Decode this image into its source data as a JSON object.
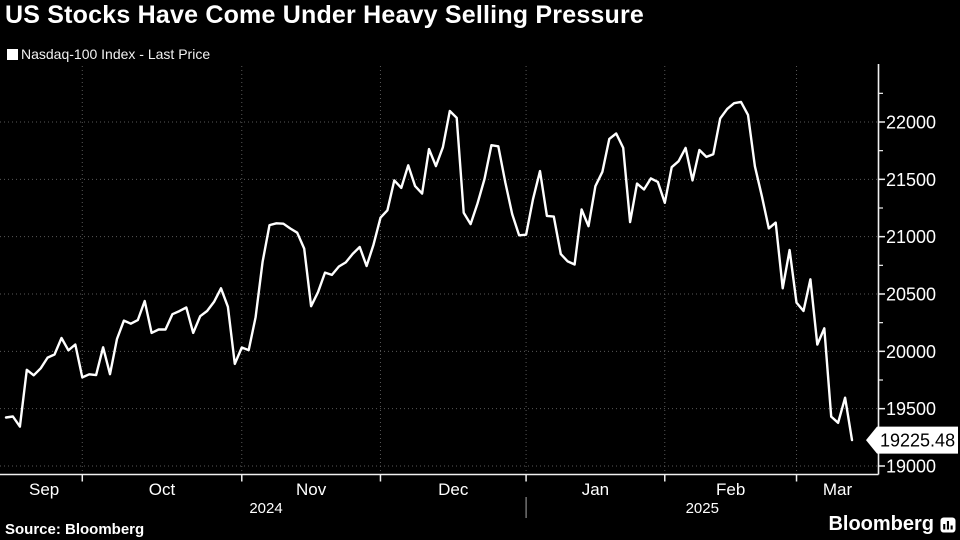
{
  "header": {
    "title": "US Stocks Have Come Under Heavy Selling Pressure"
  },
  "legend": {
    "swatch_color": "#ffffff",
    "label": "Nasdaq-100 Index - Last Price"
  },
  "footer": {
    "source": "Source: Bloomberg",
    "logo_text": "Bloomberg",
    "logo_icon": "bar-chart-icon"
  },
  "colors": {
    "background": "#000000",
    "text": "#ffffff",
    "grid": "#585858",
    "axis": "#f0f0f0",
    "series_line": "#ffffff",
    "tag_background": "#ffffff",
    "tag_text": "#000000"
  },
  "chart_data": {
    "type": "line",
    "title": "US Stocks Have Come Under Heavy Selling Pressure",
    "legend_position": "top-left",
    "grid": "dotted, horizontal at major y ticks, vertical at month starts",
    "background": "#000000",
    "series": [
      {
        "name": "Nasdaq-100 Index - Last Price",
        "color": "#ffffff",
        "frequency": "daily close",
        "values": [
          19423,
          19432,
          19344,
          19839,
          19791,
          19852,
          19945,
          19972,
          20116,
          20009,
          20060,
          19773,
          19800,
          19793,
          20035,
          19801,
          20108,
          20268,
          20241,
          20272,
          20439,
          20161,
          20190,
          20190,
          20324,
          20351,
          20382,
          20161,
          20306,
          20352,
          20431,
          20550,
          20388,
          19890,
          20033,
          20011,
          20298,
          20781,
          21101,
          21117,
          21113,
          21071,
          21035,
          20896,
          20394,
          20516,
          20687,
          20667,
          20740,
          20776,
          20850,
          20910,
          20744,
          20930,
          21165,
          21230,
          21491,
          21425,
          21622,
          21441,
          21376,
          21764,
          21615,
          21780,
          22096,
          22037,
          21209,
          21110,
          21289,
          21503,
          21798,
          21788,
          21473,
          21197,
          21012,
          21017,
          21327,
          21572,
          21181,
          21175,
          20848,
          20784,
          20757,
          21237,
          21091,
          21441,
          21566,
          21853,
          21900,
          21774,
          21127,
          21463,
          21411,
          21508,
          21478,
          21295,
          21606,
          21658,
          21774,
          21491,
          21756,
          21696,
          21719,
          22031,
          22114,
          22164,
          22175,
          22062,
          21614,
          21352,
          21072,
          21123,
          20550,
          20884,
          20425,
          20352,
          20628,
          20059,
          20201,
          19431,
          19377,
          19596,
          19225.48
        ]
      }
    ],
    "x_axis": {
      "tick_labels": [
        "Sep",
        "Oct",
        "Nov",
        "Dec",
        "Jan",
        "Feb",
        "Mar"
      ],
      "month_start_indices": [
        0,
        11,
        34,
        54,
        75,
        95,
        114
      ],
      "year_labels": [
        "2024",
        "2025"
      ],
      "year_split_index": 75
    },
    "y_axis": {
      "side": "right",
      "tick_values": [
        19000,
        19500,
        20000,
        20500,
        21000,
        21500,
        22000
      ],
      "tick_labels": [
        "19000",
        "19500",
        "20000",
        "20500",
        "21000",
        "21500",
        "22000"
      ],
      "minor_tick_step": 250,
      "ylim": [
        18930,
        22490
      ]
    },
    "last_price": 19225.48,
    "last_price_label": "19225.48"
  }
}
